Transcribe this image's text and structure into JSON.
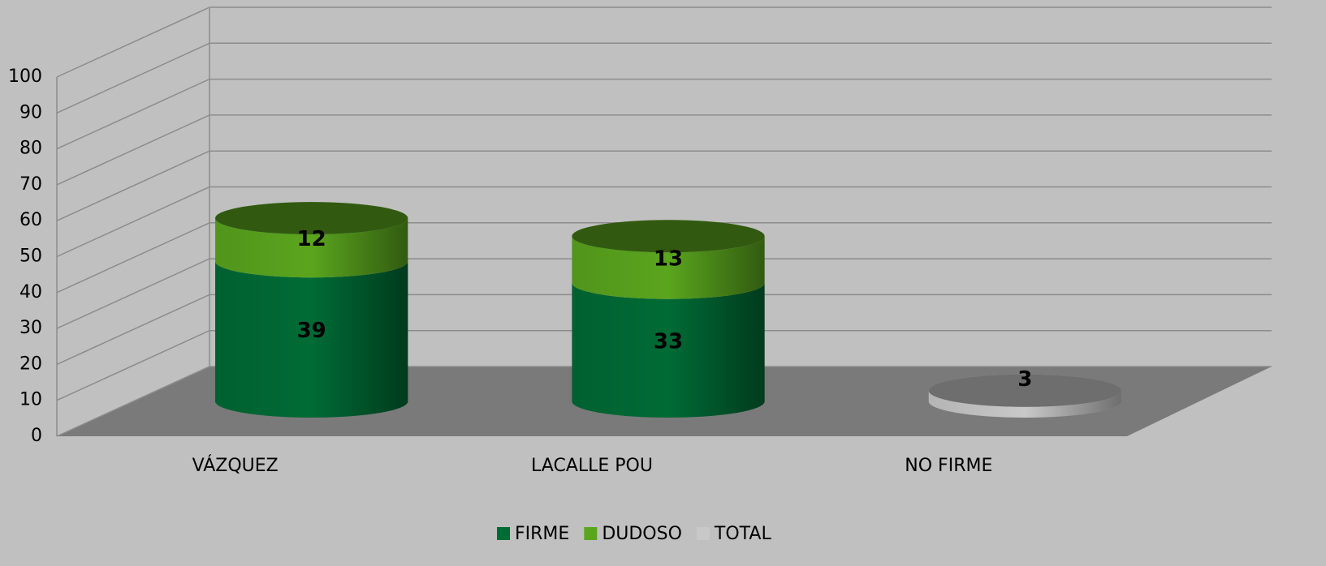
{
  "chart_data": {
    "type": "bar3d-stacked",
    "categories": [
      "VÁZQUEZ",
      "LACALLE POU",
      "NO FIRME"
    ],
    "series": [
      {
        "name": "FIRME",
        "color": "#006b35",
        "values": [
          39,
          33,
          null
        ]
      },
      {
        "name": "DUDOSO",
        "color": "#5aa51e",
        "values": [
          12,
          13,
          null
        ]
      },
      {
        "name": "TOTAL",
        "color": "#c8c8c8",
        "values": [
          null,
          null,
          3
        ]
      }
    ],
    "ylim": [
      0,
      100
    ],
    "yticks": [
      0,
      10,
      20,
      30,
      40,
      50,
      60,
      70,
      80,
      90,
      100
    ],
    "grid": true,
    "legend": "bottom"
  }
}
